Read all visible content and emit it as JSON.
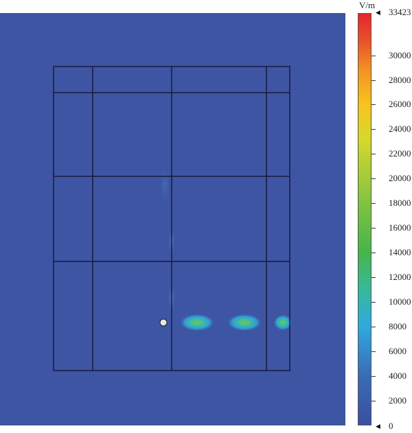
{
  "colorbar": {
    "unit": "V/m",
    "max_label": "33423",
    "min_label": "0",
    "ticks": [
      "30000",
      "28000",
      "26000",
      "24000",
      "22000",
      "20000",
      "18000",
      "16000",
      "14000",
      "12000",
      "10000",
      "8000",
      "6000",
      "4000",
      "2000"
    ]
  },
  "colors": {
    "background_field": "#3d55a3",
    "grid_lines": "#1a1a3a",
    "marker": "#e8e8e8"
  }
}
